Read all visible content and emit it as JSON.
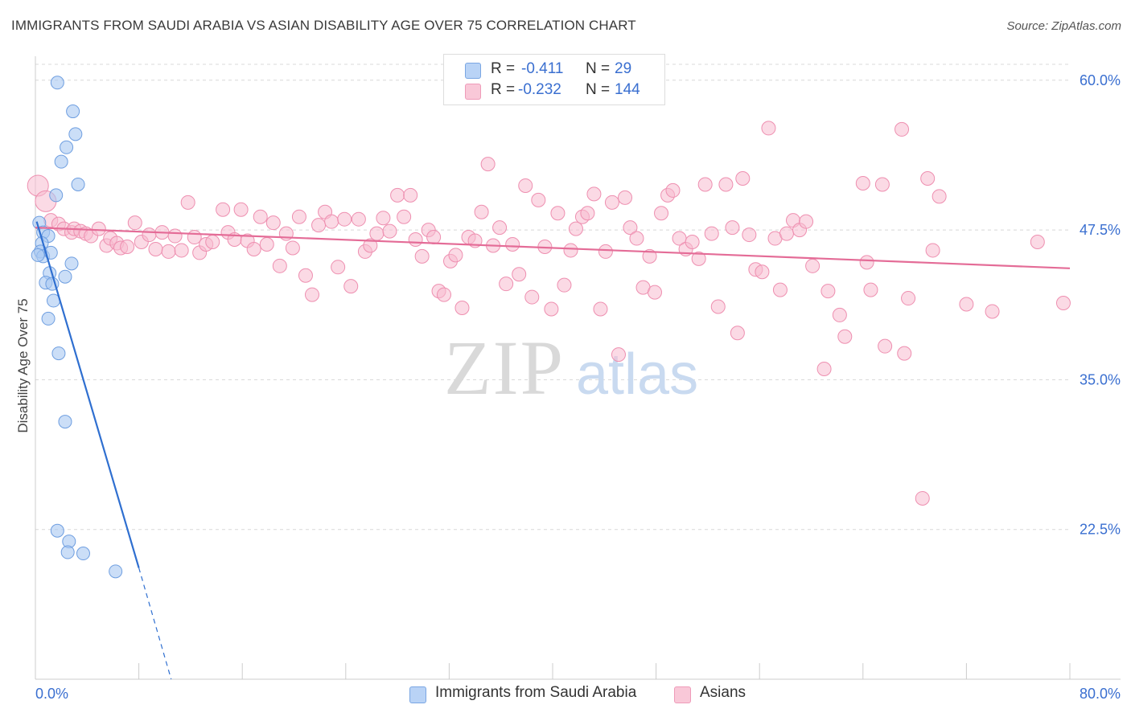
{
  "title": "IMMIGRANTS FROM SAUDI ARABIA VS ASIAN DISABILITY AGE OVER 75 CORRELATION CHART",
  "source": "Source: ZipAtlas.com",
  "watermark": {
    "zip": "ZIP",
    "atlas": "atlas"
  },
  "legend": {
    "rows": [
      {
        "r_label": "R =",
        "r_value": "-0.411",
        "n_label": "N =",
        "n_value": "29"
      },
      {
        "r_label": "R =",
        "r_value": "-0.232",
        "n_label": "N =",
        "n_value": "144"
      }
    ]
  },
  "bottom_legend": {
    "items": [
      {
        "label": "Immigrants from Saudi Arabia"
      },
      {
        "label": "Asians"
      }
    ]
  },
  "chart_data": {
    "type": "scatter",
    "title": "IMMIGRANTS FROM SAUDI ARABIA VS ASIAN DISABILITY AGE OVER 75 CORRELATION CHART",
    "xlabel": "",
    "ylabel": "Disability Age Over 75",
    "xlim": [
      0,
      80
    ],
    "ylim": [
      10,
      62
    ],
    "x_tick_labels": [
      "0.0%",
      "80.0%"
    ],
    "y_ticks": [
      22.5,
      35.0,
      47.5,
      60.0
    ],
    "y_tick_labels": [
      "22.5%",
      "35.0%",
      "47.5%",
      "60.0%"
    ],
    "grid": true,
    "colors": {
      "blue_fill": "#a9c8f2",
      "blue_stroke": "#6e9ee0",
      "blue_line": "#2f6fd0",
      "pink_fill": "#f7bcd0",
      "pink_stroke": "#ee8fb0",
      "pink_line": "#e46c97",
      "tick_text": "#3a6fd0",
      "grid": "#d8d8d8"
    },
    "series": [
      {
        "name": "Immigrants from Saudi Arabia",
        "color": "#a9c8f2",
        "trend": {
          "x": [
            0.1,
            8.0
          ],
          "y": [
            48.2,
            19.3
          ],
          "dashed_to": [
            10.5,
            10.0
          ]
        },
        "points": [
          [
            1.7,
            59.8
          ],
          [
            2.9,
            57.4
          ],
          [
            3.1,
            55.5
          ],
          [
            2.4,
            54.4
          ],
          [
            2.0,
            53.2
          ],
          [
            3.3,
            51.3
          ],
          [
            1.6,
            50.4
          ],
          [
            0.3,
            48.1
          ],
          [
            0.6,
            47.3
          ],
          [
            1.0,
            47.0
          ],
          [
            0.5,
            46.4
          ],
          [
            0.4,
            45.7
          ],
          [
            0.6,
            45.3
          ],
          [
            1.2,
            45.6
          ],
          [
            2.8,
            44.7
          ],
          [
            1.1,
            43.9
          ],
          [
            2.3,
            43.6
          ],
          [
            0.8,
            43.1
          ],
          [
            1.3,
            43.0
          ],
          [
            1.4,
            41.6
          ],
          [
            1.0,
            40.1
          ],
          [
            1.8,
            37.2
          ],
          [
            2.3,
            31.5
          ],
          [
            1.7,
            22.4
          ],
          [
            2.6,
            21.5
          ],
          [
            2.5,
            20.6
          ],
          [
            3.7,
            20.5
          ],
          [
            6.2,
            19.0
          ],
          [
            0.2,
            45.4
          ]
        ]
      },
      {
        "name": "Asians",
        "color": "#f7bcd0",
        "trend": {
          "x": [
            0.0,
            80.0
          ],
          "y": [
            47.7,
            44.3
          ]
        },
        "points": [
          [
            0.2,
            51.2
          ],
          [
            0.8,
            49.9
          ],
          [
            1.2,
            48.3
          ],
          [
            1.8,
            48.0
          ],
          [
            2.2,
            47.6
          ],
          [
            2.8,
            47.3
          ],
          [
            3.0,
            47.6
          ],
          [
            3.5,
            47.4
          ],
          [
            3.9,
            47.2
          ],
          [
            4.3,
            47.0
          ],
          [
            4.9,
            47.6
          ],
          [
            5.5,
            46.2
          ],
          [
            5.8,
            46.8
          ],
          [
            6.3,
            46.4
          ],
          [
            6.6,
            46.0
          ],
          [
            7.1,
            46.1
          ],
          [
            7.7,
            48.1
          ],
          [
            8.2,
            46.5
          ],
          [
            8.8,
            47.1
          ],
          [
            9.3,
            45.9
          ],
          [
            9.8,
            47.3
          ],
          [
            10.3,
            45.7
          ],
          [
            10.8,
            47.0
          ],
          [
            11.3,
            45.8
          ],
          [
            11.8,
            49.8
          ],
          [
            12.3,
            46.9
          ],
          [
            12.7,
            45.6
          ],
          [
            13.2,
            46.3
          ],
          [
            13.7,
            46.5
          ],
          [
            14.5,
            49.2
          ],
          [
            14.9,
            47.3
          ],
          [
            15.4,
            46.7
          ],
          [
            15.9,
            49.2
          ],
          [
            16.4,
            46.6
          ],
          [
            16.9,
            45.9
          ],
          [
            17.4,
            48.6
          ],
          [
            17.9,
            46.3
          ],
          [
            18.4,
            48.1
          ],
          [
            18.9,
            44.5
          ],
          [
            19.4,
            47.2
          ],
          [
            19.9,
            46.0
          ],
          [
            20.4,
            48.6
          ],
          [
            20.9,
            43.7
          ],
          [
            21.4,
            42.1
          ],
          [
            21.9,
            47.9
          ],
          [
            22.4,
            49.0
          ],
          [
            22.9,
            48.2
          ],
          [
            23.4,
            44.4
          ],
          [
            23.9,
            48.4
          ],
          [
            24.4,
            42.8
          ],
          [
            25.0,
            48.4
          ],
          [
            25.5,
            45.7
          ],
          [
            25.9,
            46.2
          ],
          [
            26.4,
            47.2
          ],
          [
            26.9,
            48.5
          ],
          [
            27.4,
            47.4
          ],
          [
            28.0,
            50.4
          ],
          [
            28.5,
            48.6
          ],
          [
            29.0,
            50.4
          ],
          [
            29.4,
            46.7
          ],
          [
            29.9,
            45.3
          ],
          [
            30.4,
            47.5
          ],
          [
            30.8,
            46.9
          ],
          [
            31.2,
            42.4
          ],
          [
            31.6,
            42.1
          ],
          [
            32.1,
            44.9
          ],
          [
            32.5,
            45.4
          ],
          [
            33.0,
            41.0
          ],
          [
            33.5,
            46.9
          ],
          [
            34.0,
            46.6
          ],
          [
            34.5,
            49.0
          ],
          [
            35.0,
            53.0
          ],
          [
            35.4,
            46.2
          ],
          [
            35.9,
            47.7
          ],
          [
            36.4,
            43.0
          ],
          [
            36.9,
            46.3
          ],
          [
            37.4,
            43.8
          ],
          [
            37.9,
            51.2
          ],
          [
            38.4,
            41.9
          ],
          [
            38.9,
            50.0
          ],
          [
            39.4,
            46.1
          ],
          [
            39.9,
            40.9
          ],
          [
            40.4,
            48.9
          ],
          [
            40.9,
            42.9
          ],
          [
            41.4,
            45.8
          ],
          [
            41.8,
            47.6
          ],
          [
            42.3,
            48.6
          ],
          [
            42.7,
            48.9
          ],
          [
            43.2,
            50.5
          ],
          [
            43.7,
            40.9
          ],
          [
            44.1,
            45.7
          ],
          [
            44.6,
            49.8
          ],
          [
            45.1,
            37.1
          ],
          [
            45.6,
            50.2
          ],
          [
            46.0,
            47.7
          ],
          [
            46.5,
            46.8
          ],
          [
            47.0,
            42.7
          ],
          [
            47.5,
            45.3
          ],
          [
            47.9,
            42.3
          ],
          [
            48.4,
            48.9
          ],
          [
            48.9,
            50.4
          ],
          [
            49.3,
            50.8
          ],
          [
            49.8,
            46.8
          ],
          [
            50.3,
            45.9
          ],
          [
            50.8,
            46.5
          ],
          [
            51.3,
            45.1
          ],
          [
            51.8,
            51.3
          ],
          [
            52.3,
            47.2
          ],
          [
            52.8,
            41.1
          ],
          [
            53.4,
            51.3
          ],
          [
            53.9,
            47.7
          ],
          [
            54.3,
            38.9
          ],
          [
            54.7,
            51.8
          ],
          [
            55.2,
            47.1
          ],
          [
            55.7,
            44.2
          ],
          [
            56.2,
            44.0
          ],
          [
            56.7,
            56.0
          ],
          [
            57.2,
            46.8
          ],
          [
            57.6,
            42.5
          ],
          [
            58.1,
            47.2
          ],
          [
            58.6,
            48.3
          ],
          [
            59.1,
            47.5
          ],
          [
            59.6,
            48.2
          ],
          [
            60.1,
            44.5
          ],
          [
            61.0,
            35.9
          ],
          [
            61.3,
            42.4
          ],
          [
            62.2,
            40.4
          ],
          [
            62.6,
            38.6
          ],
          [
            64.0,
            51.4
          ],
          [
            64.3,
            44.8
          ],
          [
            64.6,
            42.5
          ],
          [
            65.5,
            51.3
          ],
          [
            65.7,
            37.8
          ],
          [
            67.0,
            55.9
          ],
          [
            67.2,
            37.2
          ],
          [
            67.5,
            41.8
          ],
          [
            68.6,
            25.1
          ],
          [
            69.0,
            51.8
          ],
          [
            69.4,
            45.8
          ],
          [
            69.9,
            50.3
          ],
          [
            72.0,
            41.3
          ],
          [
            74.0,
            40.7
          ],
          [
            77.5,
            46.5
          ],
          [
            79.5,
            41.4
          ]
        ]
      }
    ]
  }
}
